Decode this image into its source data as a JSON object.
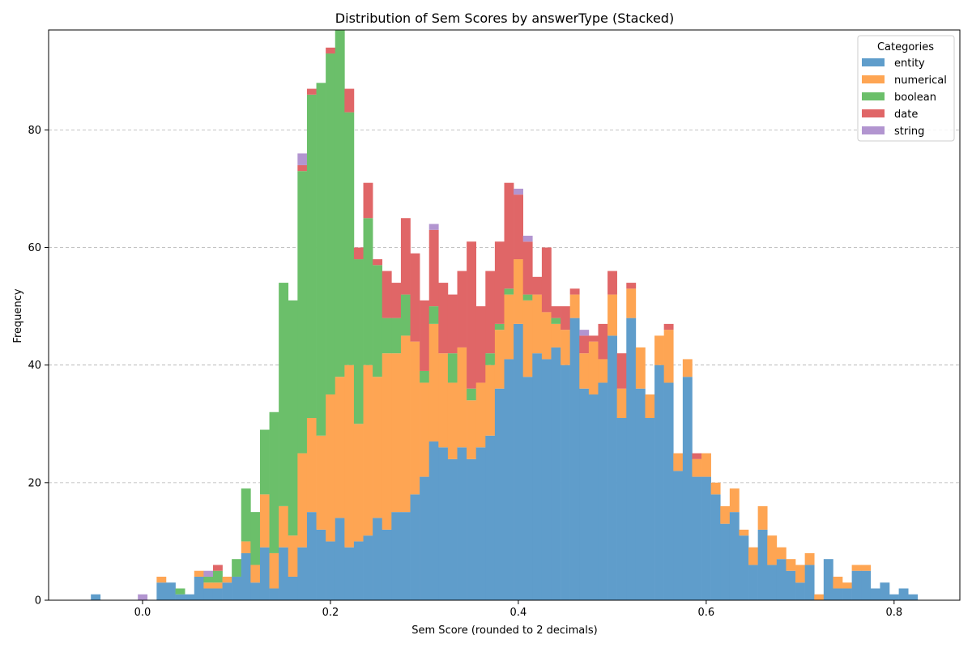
{
  "chart_data": {
    "type": "bar",
    "stacked": true,
    "title": "Distribution of Sem Scores by answerType (Stacked)",
    "xlabel": "Sem Score (rounded to 2 decimals)",
    "ylabel": "Frequency",
    "xlim": [
      -0.1,
      0.87
    ],
    "ylim": [
      0,
      97
    ],
    "bin_width": 0.01,
    "grid": "y-dashed",
    "legend_title": "Categories",
    "legend_position": "top-right",
    "x_ticks": [
      0.0,
      0.2,
      0.4,
      0.6,
      0.8
    ],
    "x_tick_labels": [
      "0.0",
      "0.2",
      "0.4",
      "0.6",
      "0.8"
    ],
    "y_ticks": [
      0,
      20,
      40,
      60,
      80
    ],
    "y_tick_labels": [
      "0",
      "20",
      "40",
      "60",
      "80"
    ],
    "x": [
      -0.05,
      -0.04,
      -0.03,
      -0.02,
      -0.01,
      0.0,
      0.01,
      0.02,
      0.03,
      0.04,
      0.05,
      0.06,
      0.07,
      0.08,
      0.09,
      0.1,
      0.11,
      0.12,
      0.13,
      0.14,
      0.15,
      0.16,
      0.17,
      0.18,
      0.19,
      0.2,
      0.21,
      0.22,
      0.23,
      0.24,
      0.25,
      0.26,
      0.27,
      0.28,
      0.29,
      0.3,
      0.31,
      0.32,
      0.33,
      0.34,
      0.35,
      0.36,
      0.37,
      0.38,
      0.39,
      0.4,
      0.41,
      0.42,
      0.43,
      0.44,
      0.45,
      0.46,
      0.47,
      0.48,
      0.49,
      0.5,
      0.51,
      0.52,
      0.53,
      0.54,
      0.55,
      0.56,
      0.57,
      0.58,
      0.59,
      0.6,
      0.61,
      0.62,
      0.63,
      0.64,
      0.65,
      0.66,
      0.67,
      0.68,
      0.69,
      0.7,
      0.71,
      0.72,
      0.73,
      0.74,
      0.75,
      0.76,
      0.77,
      0.78,
      0.79,
      0.8,
      0.81,
      0.82
    ],
    "series": [
      {
        "name": "entity",
        "color": "#5f9dcb",
        "values": [
          1,
          0,
          0,
          0,
          0,
          0,
          0,
          3,
          3,
          1,
          1,
          4,
          2,
          2,
          3,
          4,
          8,
          3,
          9,
          2,
          9,
          4,
          9,
          15,
          12,
          10,
          14,
          9,
          10,
          11,
          14,
          12,
          15,
          15,
          18,
          21,
          27,
          26,
          24,
          26,
          24,
          26,
          28,
          36,
          41,
          47,
          38,
          42,
          41,
          43,
          40,
          48,
          36,
          35,
          37,
          45,
          31,
          48,
          36,
          31,
          40,
          37,
          22,
          38,
          21,
          21,
          18,
          13,
          15,
          11,
          6,
          12,
          6,
          7,
          5,
          3,
          6,
          0,
          7,
          2,
          2,
          5,
          5,
          2,
          3,
          1,
          2,
          1
        ]
      },
      {
        "name": "numerical",
        "color": "#fea553",
        "values": [
          0,
          0,
          0,
          0,
          0,
          0,
          0,
          1,
          0,
          0,
          0,
          1,
          1,
          1,
          1,
          0,
          2,
          3,
          9,
          6,
          7,
          7,
          16,
          16,
          16,
          25,
          24,
          31,
          20,
          29,
          24,
          30,
          27,
          30,
          26,
          16,
          20,
          16,
          13,
          17,
          10,
          11,
          12,
          10,
          11,
          11,
          13,
          10,
          8,
          4,
          6,
          4,
          6,
          9,
          4,
          7,
          5,
          5,
          7,
          4,
          5,
          9,
          3,
          3,
          3,
          4,
          2,
          3,
          4,
          1,
          3,
          4,
          5,
          2,
          2,
          3,
          2,
          1,
          0,
          2,
          1,
          1,
          1,
          0,
          0,
          0,
          0,
          0
        ]
      },
      {
        "name": "boolean",
        "color": "#6bbf6a",
        "values": [
          0,
          0,
          0,
          0,
          0,
          0,
          0,
          0,
          0,
          1,
          0,
          0,
          1,
          2,
          0,
          3,
          9,
          9,
          11,
          24,
          38,
          40,
          48,
          55,
          60,
          58,
          59,
          43,
          28,
          25,
          19,
          6,
          6,
          7,
          0,
          2,
          3,
          0,
          5,
          0,
          2,
          0,
          2,
          1,
          1,
          0,
          1,
          0,
          0,
          1,
          0,
          0,
          0,
          0,
          0,
          0,
          0,
          0,
          0,
          0,
          0,
          0,
          0,
          0,
          0,
          0,
          0,
          0,
          0,
          0,
          0,
          0,
          0,
          0,
          0,
          0,
          0,
          0,
          0,
          0,
          0,
          0,
          0,
          0,
          0,
          0,
          0,
          0
        ]
      },
      {
        "name": "date",
        "color": "#e06667",
        "values": [
          0,
          0,
          0,
          0,
          0,
          0,
          0,
          0,
          0,
          0,
          0,
          0,
          0,
          1,
          0,
          0,
          0,
          0,
          0,
          0,
          0,
          0,
          1,
          1,
          0,
          1,
          0,
          4,
          2,
          6,
          1,
          8,
          6,
          13,
          15,
          12,
          13,
          12,
          10,
          13,
          25,
          13,
          14,
          14,
          18,
          11,
          9,
          3,
          11,
          2,
          4,
          1,
          3,
          1,
          6,
          4,
          6,
          1,
          0,
          0,
          0,
          1,
          0,
          0,
          1,
          0,
          0,
          0,
          0,
          0,
          0,
          0,
          0,
          0,
          0,
          0,
          0,
          0,
          0,
          0,
          0,
          0,
          0,
          0,
          0,
          0,
          0,
          0
        ]
      },
      {
        "name": "string",
        "color": "#b295d0",
        "values": [
          0,
          0,
          0,
          0,
          0,
          1,
          0,
          0,
          0,
          0,
          0,
          0,
          1,
          0,
          0,
          0,
          0,
          0,
          0,
          0,
          0,
          0,
          2,
          0,
          0,
          0,
          0,
          0,
          0,
          0,
          0,
          0,
          0,
          0,
          0,
          0,
          1,
          0,
          0,
          0,
          0,
          0,
          0,
          0,
          0,
          1,
          1,
          0,
          0,
          0,
          0,
          0,
          1,
          0,
          0,
          0,
          0,
          0,
          0,
          0,
          0,
          0,
          0,
          0,
          0,
          0,
          0,
          0,
          0,
          0,
          0,
          0,
          0,
          0,
          0,
          0,
          0,
          0,
          0,
          0,
          0,
          0,
          0,
          0,
          0,
          0,
          0,
          0
        ]
      }
    ]
  }
}
